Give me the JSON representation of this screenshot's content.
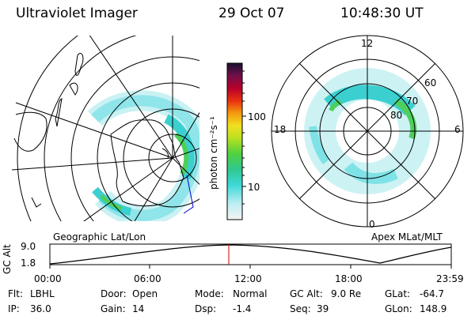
{
  "header": {
    "instrument": "Ultraviolet Imager",
    "date": "29 Oct 07",
    "time": "10:48:30 UT"
  },
  "colorbar": {
    "unit_label": "photon cm⁻²s⁻¹",
    "ticks": [
      "100",
      "10"
    ]
  },
  "geo_panel": {
    "label": "Geographic Lat/Lon"
  },
  "polar_panel": {
    "label": "Apex MLat/MLT",
    "mlt_labels": {
      "top": "12",
      "left": "18",
      "right": "6",
      "bottom": "0"
    },
    "lat_labels": [
      "60",
      "70",
      "80"
    ]
  },
  "altitude_plot": {
    "ylabel": "GC Alt",
    "yticks": [
      "9.0",
      "1.8"
    ],
    "xticks": [
      "00:00",
      "06:00",
      "12:00",
      "18:00",
      "23:59"
    ],
    "marker_color": "#cc0000"
  },
  "info": {
    "filter_label": "Flt:",
    "filter": "LBHL",
    "ip_label": "IP:",
    "ip": "36.0",
    "door_label": "Door:",
    "door": "Open",
    "gain_label": "Gain:",
    "gain": "14",
    "mode_label": "Mode:",
    "mode": "Normal",
    "dsp_label": "Dsp:",
    "dsp": "-1.4",
    "gcalt_label": "GC Alt:",
    "gcalt": "9.0 Re",
    "seq_label": "Seq:",
    "seq": "39",
    "glat_label": "GLat:",
    "glat": "-64.7",
    "glon_label": "GLon:",
    "glon": "148.9"
  }
}
